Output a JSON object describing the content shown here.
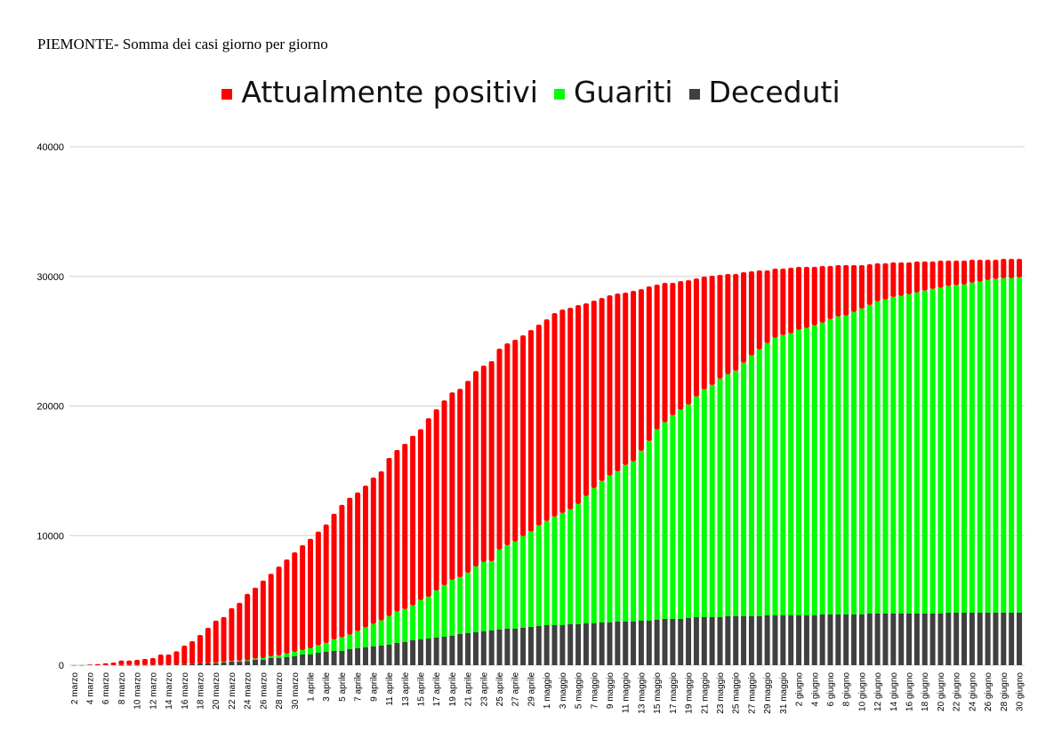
{
  "chart_data": {
    "type": "bar",
    "stacked": true,
    "title": "PIEMONTE- Somma dei casi giorno per giorno",
    "xlabel": "",
    "ylabel": "",
    "ylim": [
      0,
      40000
    ],
    "yticks": [
      0,
      10000,
      20000,
      30000,
      40000
    ],
    "grid": true,
    "legend_position": "top-center",
    "categories": [
      "2 marzo",
      "3 marzo",
      "4 marzo",
      "5 marzo",
      "6 marzo",
      "7 marzo",
      "8 marzo",
      "9 marzo",
      "10 marzo",
      "11 marzo",
      "12 marzo",
      "13 marzo",
      "14 marzo",
      "15 marzo",
      "16 marzo",
      "17 marzo",
      "18 marzo",
      "19 marzo",
      "20 marzo",
      "21 marzo",
      "22 marzo",
      "23 marzo",
      "24 marzo",
      "25 marzo",
      "26 marzo",
      "27 marzo",
      "28 marzo",
      "29 marzo",
      "30 marzo",
      "31 marzo",
      "1 aprile",
      "2 aprile",
      "3 aprile",
      "4 aprile",
      "5 aprile",
      "6 aprile",
      "7 aprile",
      "8 aprile",
      "9 aprile",
      "10 aprile",
      "11 aprile",
      "12 aprile",
      "13 aprile",
      "14 aprile",
      "15 aprile",
      "16 aprile",
      "17 aprile",
      "18 aprile",
      "19 aprile",
      "20 aprile",
      "21 aprile",
      "22 aprile",
      "23 aprile",
      "24 aprile",
      "25 aprile",
      "26 aprile",
      "27 aprile",
      "28 aprile",
      "29 aprile",
      "30 aprile",
      "1 maggio",
      "2 maggio",
      "3 maggio",
      "4 maggio",
      "5 maggio",
      "6 maggio",
      "7 maggio",
      "8 maggio",
      "9 maggio",
      "10 maggio",
      "11 maggio",
      "12 maggio",
      "13 maggio",
      "14 maggio",
      "15 maggio",
      "16 maggio",
      "17 maggio",
      "18 maggio",
      "19 maggio",
      "20 maggio",
      "21 maggio",
      "22 maggio",
      "23 maggio",
      "24 maggio",
      "25 maggio",
      "26 maggio",
      "27 maggio",
      "28 maggio",
      "29 maggio",
      "30 maggio",
      "31 maggio",
      "1 giugno",
      "2 giugno",
      "3 giugno",
      "4 giugno",
      "5 giugno",
      "6 giugno",
      "7 giugno",
      "8 giugno",
      "9 giugno",
      "10 giugno",
      "11 giugno",
      "12 giugno",
      "13 giugno",
      "14 giugno",
      "15 giugno",
      "16 giugno",
      "17 giugno",
      "18 giugno",
      "19 giugno",
      "20 giugno",
      "21 giugno",
      "22 giugno",
      "23 giugno",
      "24 giugno",
      "25 giugno",
      "26 giugno",
      "27 giugno",
      "28 giugno",
      "29 giugno",
      "30 giugno"
    ],
    "series": [
      {
        "name": "Deceduti",
        "color": "#404040",
        "values": [
          0,
          0,
          0,
          0,
          0,
          0,
          5,
          5,
          12,
          16,
          20,
          24,
          29,
          36,
          61,
          70,
          137,
          145,
          160,
          206,
          275,
          290,
          320,
          412,
          412,
          550,
          550,
          618,
          687,
          824,
          824,
          962,
          1030,
          1099,
          1099,
          1237,
          1305,
          1374,
          1443,
          1511,
          1580,
          1717,
          1786,
          1924,
          1992,
          2059,
          2128,
          2196,
          2265,
          2402,
          2471,
          2540,
          2608,
          2677,
          2746,
          2814,
          2814,
          2883,
          2951,
          3020,
          3089,
          3089,
          3089,
          3157,
          3157,
          3226,
          3226,
          3295,
          3295,
          3363,
          3363,
          3363,
          3432,
          3432,
          3501,
          3569,
          3569,
          3569,
          3638,
          3707,
          3707,
          3707,
          3707,
          3775,
          3775,
          3775,
          3775,
          3775,
          3844,
          3844,
          3844,
          3844,
          3844,
          3844,
          3844,
          3912,
          3912,
          3912,
          3912,
          3912,
          3912,
          3981,
          3981,
          3981,
          3981,
          3981,
          3981,
          3981,
          3981,
          3981,
          3981,
          4050,
          4050,
          4050,
          4050,
          4050,
          4050,
          4050,
          4050,
          4050,
          4050
        ]
      },
      {
        "name": "Guariti",
        "color": "#00ff00",
        "values": [
          0,
          0,
          0,
          0,
          0,
          0,
          0,
          0,
          0,
          0,
          0,
          0,
          0,
          0,
          0,
          0,
          0,
          0,
          20,
          30,
          40,
          50,
          60,
          100,
          138,
          137,
          206,
          275,
          343,
          344,
          481,
          572,
          687,
          893,
          1054,
          1122,
          1328,
          1534,
          1740,
          1947,
          2198,
          2428,
          2542,
          2679,
          3023,
          3226,
          3638,
          3982,
          4325,
          4393,
          4668,
          5079,
          5354,
          5354,
          6177,
          6452,
          6727,
          7070,
          7345,
          7757,
          8031,
          8374,
          8649,
          8855,
          9267,
          9816,
          10433,
          10913,
          11325,
          11601,
          12081,
          12356,
          13111,
          13865,
          14689,
          15170,
          15719,
          16131,
          16474,
          17022,
          17571,
          17915,
          18395,
          18671,
          18945,
          19563,
          20112,
          20592,
          21004,
          21415,
          21621,
          21759,
          22033,
          22171,
          22377,
          22515,
          22789,
          22995,
          23064,
          23338,
          23613,
          23819,
          24093,
          24230,
          24436,
          24505,
          24642,
          24779,
          24917,
          25054,
          25145,
          25191,
          25260,
          25328,
          25465,
          25534,
          25671,
          25740,
          25808,
          25808,
          25877
        ]
      },
      {
        "name": "Attualmente positivi",
        "color": "#ff0000",
        "values": [
          5,
          10,
          50,
          82,
          145,
          207,
          355,
          355,
          400,
          465,
          530,
          800,
          795,
          1040,
          1450,
          1785,
          2199,
          2740,
          3255,
          3474,
          4082,
          4469,
          5116,
          5465,
          5977,
          6366,
          6847,
          7259,
          7672,
          8084,
          8450,
          8771,
          9138,
          9687,
          10213,
          10557,
          10695,
          10947,
          11290,
          11496,
          12206,
          12458,
          12755,
          13099,
          13191,
          13774,
          13980,
          14254,
          14460,
          14529,
          14803,
          15078,
          15147,
          15421,
          15490,
          15559,
          15558,
          15490,
          15559,
          15489,
          15558,
          15696,
          15695,
          15559,
          15353,
          14872,
          14461,
          14118,
          13912,
          13705,
          13294,
          13156,
          12469,
          11921,
          11165,
          10753,
          10204,
          9930,
          9586,
          9106,
          8695,
          8419,
          8008,
          7733,
          7459,
          6978,
          6498,
          6086,
          5605,
          5331,
          5125,
          5056,
          4851,
          4713,
          4507,
          4369,
          4095,
          3958,
          3889,
          3615,
          3340,
          3134,
          2928,
          2791,
          2654,
          2585,
          2448,
          2380,
          2242,
          2105,
          2082,
          1967,
          1898,
          1830,
          1762,
          1693,
          1556,
          1487,
          1488,
          1488,
          1419
        ]
      }
    ],
    "legend": [
      "Attualmente positivi",
      "Guariti",
      "Deceduti"
    ]
  }
}
